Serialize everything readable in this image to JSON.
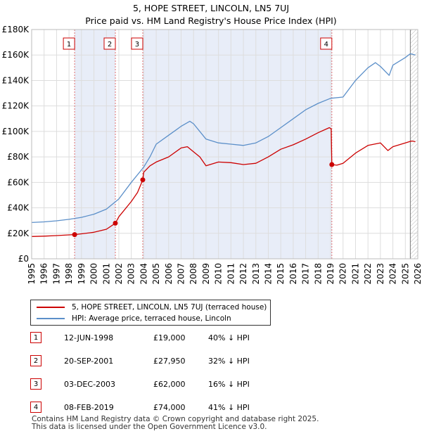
{
  "chart_data": {
    "type": "line",
    "title": "5, HOPE STREET, LINCOLN, LN5 7UJ",
    "subtitle": "Price paid vs. HM Land Registry's House Price Index (HPI)",
    "xlim": [
      1995,
      2026
    ],
    "ylim": [
      0,
      180000
    ],
    "x_ticks": [
      1995,
      1996,
      1997,
      1998,
      1999,
      2000,
      2001,
      2002,
      2003,
      2004,
      2005,
      2006,
      2007,
      2008,
      2009,
      2010,
      2011,
      2012,
      2013,
      2014,
      2015,
      2016,
      2017,
      2018,
      2019,
      2020,
      2021,
      2022,
      2023,
      2024,
      2025,
      2026
    ],
    "y_ticks": [
      {
        "value": 0,
        "label": "£0"
      },
      {
        "value": 20000,
        "label": "£20K"
      },
      {
        "value": 40000,
        "label": "£40K"
      },
      {
        "value": 60000,
        "label": "£60K"
      },
      {
        "value": 80000,
        "label": "£80K"
      },
      {
        "value": 100000,
        "label": "£100K"
      },
      {
        "value": 120000,
        "label": "£120K"
      },
      {
        "value": 140000,
        "label": "£140K"
      },
      {
        "value": 160000,
        "label": "£160K"
      },
      {
        "value": 180000,
        "label": "£180K"
      }
    ],
    "shaded_ranges": [
      [
        1998.45,
        2001.72
      ],
      [
        2003.92,
        2019.1
      ]
    ],
    "projection_start": 2025.4,
    "series": [
      {
        "name": "5, HOPE STREET, LINCOLN, LN5 7UJ (terraced house)",
        "color": "#cc0000",
        "points": [
          [
            1995,
            17500
          ],
          [
            1996,
            17800
          ],
          [
            1997,
            18200
          ],
          [
            1998,
            18800
          ],
          [
            1998.45,
            19000
          ],
          [
            1999,
            19600
          ],
          [
            2000,
            20800
          ],
          [
            2001,
            23200
          ],
          [
            2001.72,
            27950
          ],
          [
            2002,
            33000
          ],
          [
            2003,
            45000
          ],
          [
            2003.5,
            52000
          ],
          [
            2003.92,
            62000
          ],
          [
            2004,
            68000
          ],
          [
            2004.5,
            73000
          ],
          [
            2005,
            76000
          ],
          [
            2006,
            80000
          ],
          [
            2007,
            87000
          ],
          [
            2007.5,
            88000
          ],
          [
            2008,
            84000
          ],
          [
            2008.5,
            80000
          ],
          [
            2009,
            73000
          ],
          [
            2010,
            76000
          ],
          [
            2011,
            75500
          ],
          [
            2012,
            74000
          ],
          [
            2013,
            75000
          ],
          [
            2014,
            80000
          ],
          [
            2015,
            86000
          ],
          [
            2016,
            89500
          ],
          [
            2017,
            94000
          ],
          [
            2018,
            99000
          ],
          [
            2018.9,
            103000
          ],
          [
            2019.05,
            102000
          ],
          [
            2019.1,
            74000
          ],
          [
            2019.5,
            73500
          ],
          [
            2020,
            75000
          ],
          [
            2021,
            83000
          ],
          [
            2022,
            89000
          ],
          [
            2023,
            91000
          ],
          [
            2023.6,
            85000
          ],
          [
            2024,
            88000
          ],
          [
            2025,
            91000
          ],
          [
            2025.5,
            92500
          ],
          [
            2025.8,
            92000
          ]
        ]
      },
      {
        "name": "HPI: Average price, terraced house, Lincoln",
        "color": "#5b8fc9",
        "points": [
          [
            1995,
            28500
          ],
          [
            1996,
            29000
          ],
          [
            1997,
            29800
          ],
          [
            1998,
            31000
          ],
          [
            1999,
            32500
          ],
          [
            2000,
            35000
          ],
          [
            2001,
            39000
          ],
          [
            2002,
            47000
          ],
          [
            2003,
            60000
          ],
          [
            2004,
            72000
          ],
          [
            2004.5,
            80000
          ],
          [
            2005,
            90000
          ],
          [
            2006,
            97000
          ],
          [
            2007,
            104000
          ],
          [
            2007.7,
            108000
          ],
          [
            2008,
            106000
          ],
          [
            2009,
            94000
          ],
          [
            2010,
            91000
          ],
          [
            2011,
            90000
          ],
          [
            2012,
            89000
          ],
          [
            2013,
            91000
          ],
          [
            2014,
            96000
          ],
          [
            2015,
            103000
          ],
          [
            2016,
            110000
          ],
          [
            2017,
            117000
          ],
          [
            2018,
            122000
          ],
          [
            2019,
            126000
          ],
          [
            2020,
            127000
          ],
          [
            2021,
            140000
          ],
          [
            2022,
            150000
          ],
          [
            2022.6,
            154000
          ],
          [
            2023,
            151000
          ],
          [
            2023.7,
            144000
          ],
          [
            2024,
            152000
          ],
          [
            2025,
            158000
          ],
          [
            2025.4,
            161000
          ],
          [
            2025.8,
            160000
          ]
        ]
      }
    ],
    "markers": [
      {
        "label": "1",
        "x": 1998.45,
        "y": 19000
      },
      {
        "label": "2",
        "x": 2001.72,
        "y": 27950
      },
      {
        "label": "3",
        "x": 2003.92,
        "y": 62000
      },
      {
        "label": "4",
        "x": 2019.1,
        "y": 74000
      }
    ]
  },
  "legend": {
    "property_label": "5, HOPE STREET, LINCOLN, LN5 7UJ (terraced house)",
    "hpi_label": "HPI: Average price, terraced house, Lincoln"
  },
  "transactions": [
    {
      "num": "1",
      "date": "12-JUN-1998",
      "price": "£19,000",
      "pct": "40% ↓ HPI"
    },
    {
      "num": "2",
      "date": "20-SEP-2001",
      "price": "£27,950",
      "pct": "32% ↓ HPI"
    },
    {
      "num": "3",
      "date": "03-DEC-2003",
      "price": "£62,000",
      "pct": "16% ↓ HPI"
    },
    {
      "num": "4",
      "date": "08-FEB-2019",
      "price": "£74,000",
      "pct": "41% ↓ HPI"
    }
  ],
  "footer": {
    "line1": "Contains HM Land Registry data © Crown copyright and database right 2025.",
    "line2": "This data is licensed under the Open Government Licence v3.0."
  }
}
